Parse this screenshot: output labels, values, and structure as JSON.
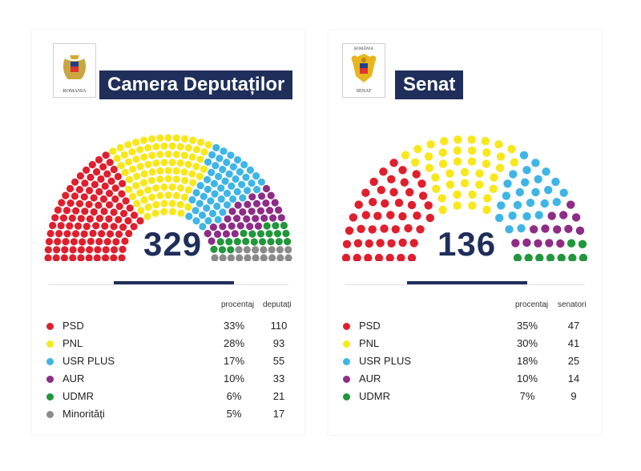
{
  "colors": {
    "PSD": "#e01f2d",
    "PNL": "#f8e71a",
    "USR PLUS": "#3fb5e6",
    "AUR": "#8e2c87",
    "UDMR": "#22963b",
    "Minorități": "#8a8a8a",
    "navy": "#1f2e5a"
  },
  "header_cd": {
    "logo_caption": "ROMANIA",
    "title": "Camera Deputaților"
  },
  "header_sen": {
    "logo_caption_top": "ROMÂNIA",
    "logo_caption_bottom": "SENAT",
    "title": "Senat"
  },
  "chart_data": [
    {
      "type": "parliament",
      "title": "Camera Deputaților",
      "total": "329",
      "columns": [
        "procentaj",
        "deputați"
      ],
      "parties": [
        {
          "name": "PSD",
          "percent": "33%",
          "seats": 110
        },
        {
          "name": "PNL",
          "percent": "28%",
          "seats": 93
        },
        {
          "name": "USR PLUS",
          "percent": "17%",
          "seats": 55
        },
        {
          "name": "AUR",
          "percent": "10%",
          "seats": 33
        },
        {
          "name": "UDMR",
          "percent": "6%",
          "seats": 21
        },
        {
          "name": "Minorități",
          "percent": "5%",
          "seats": 17
        }
      ]
    },
    {
      "type": "parliament",
      "title": "Senat",
      "total": "136",
      "columns": [
        "procentaj",
        "senatori"
      ],
      "parties": [
        {
          "name": "PSD",
          "percent": "35%",
          "seats": 47
        },
        {
          "name": "PNL",
          "percent": "30%",
          "seats": 41
        },
        {
          "name": "USR PLUS",
          "percent": "18%",
          "seats": 25
        },
        {
          "name": "AUR",
          "percent": "10%",
          "seats": 14
        },
        {
          "name": "UDMR",
          "percent": "7%",
          "seats": 9
        }
      ]
    }
  ]
}
